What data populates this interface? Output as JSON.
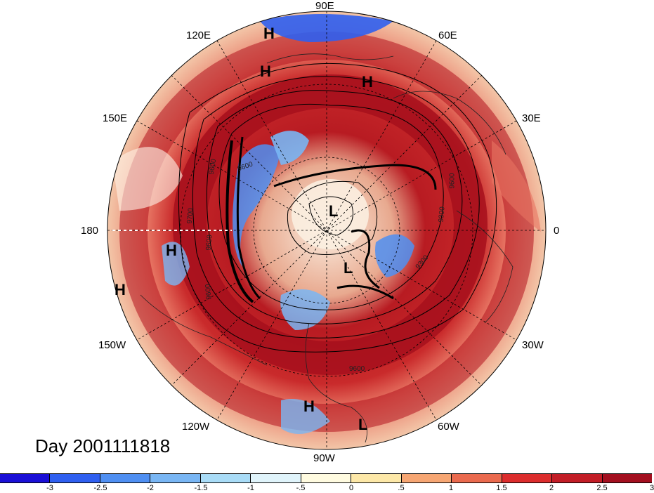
{
  "map": {
    "longitude_labels": [
      {
        "id": "lon-90e",
        "text": "90E"
      },
      {
        "id": "lon-60e",
        "text": "60E"
      },
      {
        "id": "lon-120e",
        "text": "120E"
      },
      {
        "id": "lon-30e",
        "text": "30E"
      },
      {
        "id": "lon-150e",
        "text": "150E"
      },
      {
        "id": "lon-180",
        "text": "180"
      },
      {
        "id": "lon-0",
        "text": "0"
      },
      {
        "id": "lon-150w",
        "text": "150W"
      },
      {
        "id": "lon-30w",
        "text": "30W"
      },
      {
        "id": "lon-120w",
        "text": "120W"
      },
      {
        "id": "lon-60w",
        "text": "60W"
      },
      {
        "id": "lon-90w",
        "text": "90W"
      }
    ],
    "high_marker": "H",
    "low_marker": "L",
    "contour_labels": [
      "9600",
      "9600",
      "9700",
      "9600",
      "9600",
      "9300",
      "9300",
      "9600",
      "9600"
    ]
  },
  "day_label": "Day 2001111818",
  "colorbar": {
    "colors": [
      "#1a0fd6",
      "#2f5ff0",
      "#4f8ff2",
      "#79b6f4",
      "#a9dcf7",
      "#e0f4fb",
      "#fffbe0",
      "#fde8a8",
      "#f6a673",
      "#ea6a4e",
      "#dc2d2d",
      "#c21d26",
      "#a30f1f"
    ],
    "ticks": [
      "-3",
      "-2.5",
      "-2",
      "-1.5",
      "-1",
      "-.5",
      "0",
      ".5",
      "1",
      "1.5",
      "2",
      "2.5",
      "3"
    ]
  }
}
